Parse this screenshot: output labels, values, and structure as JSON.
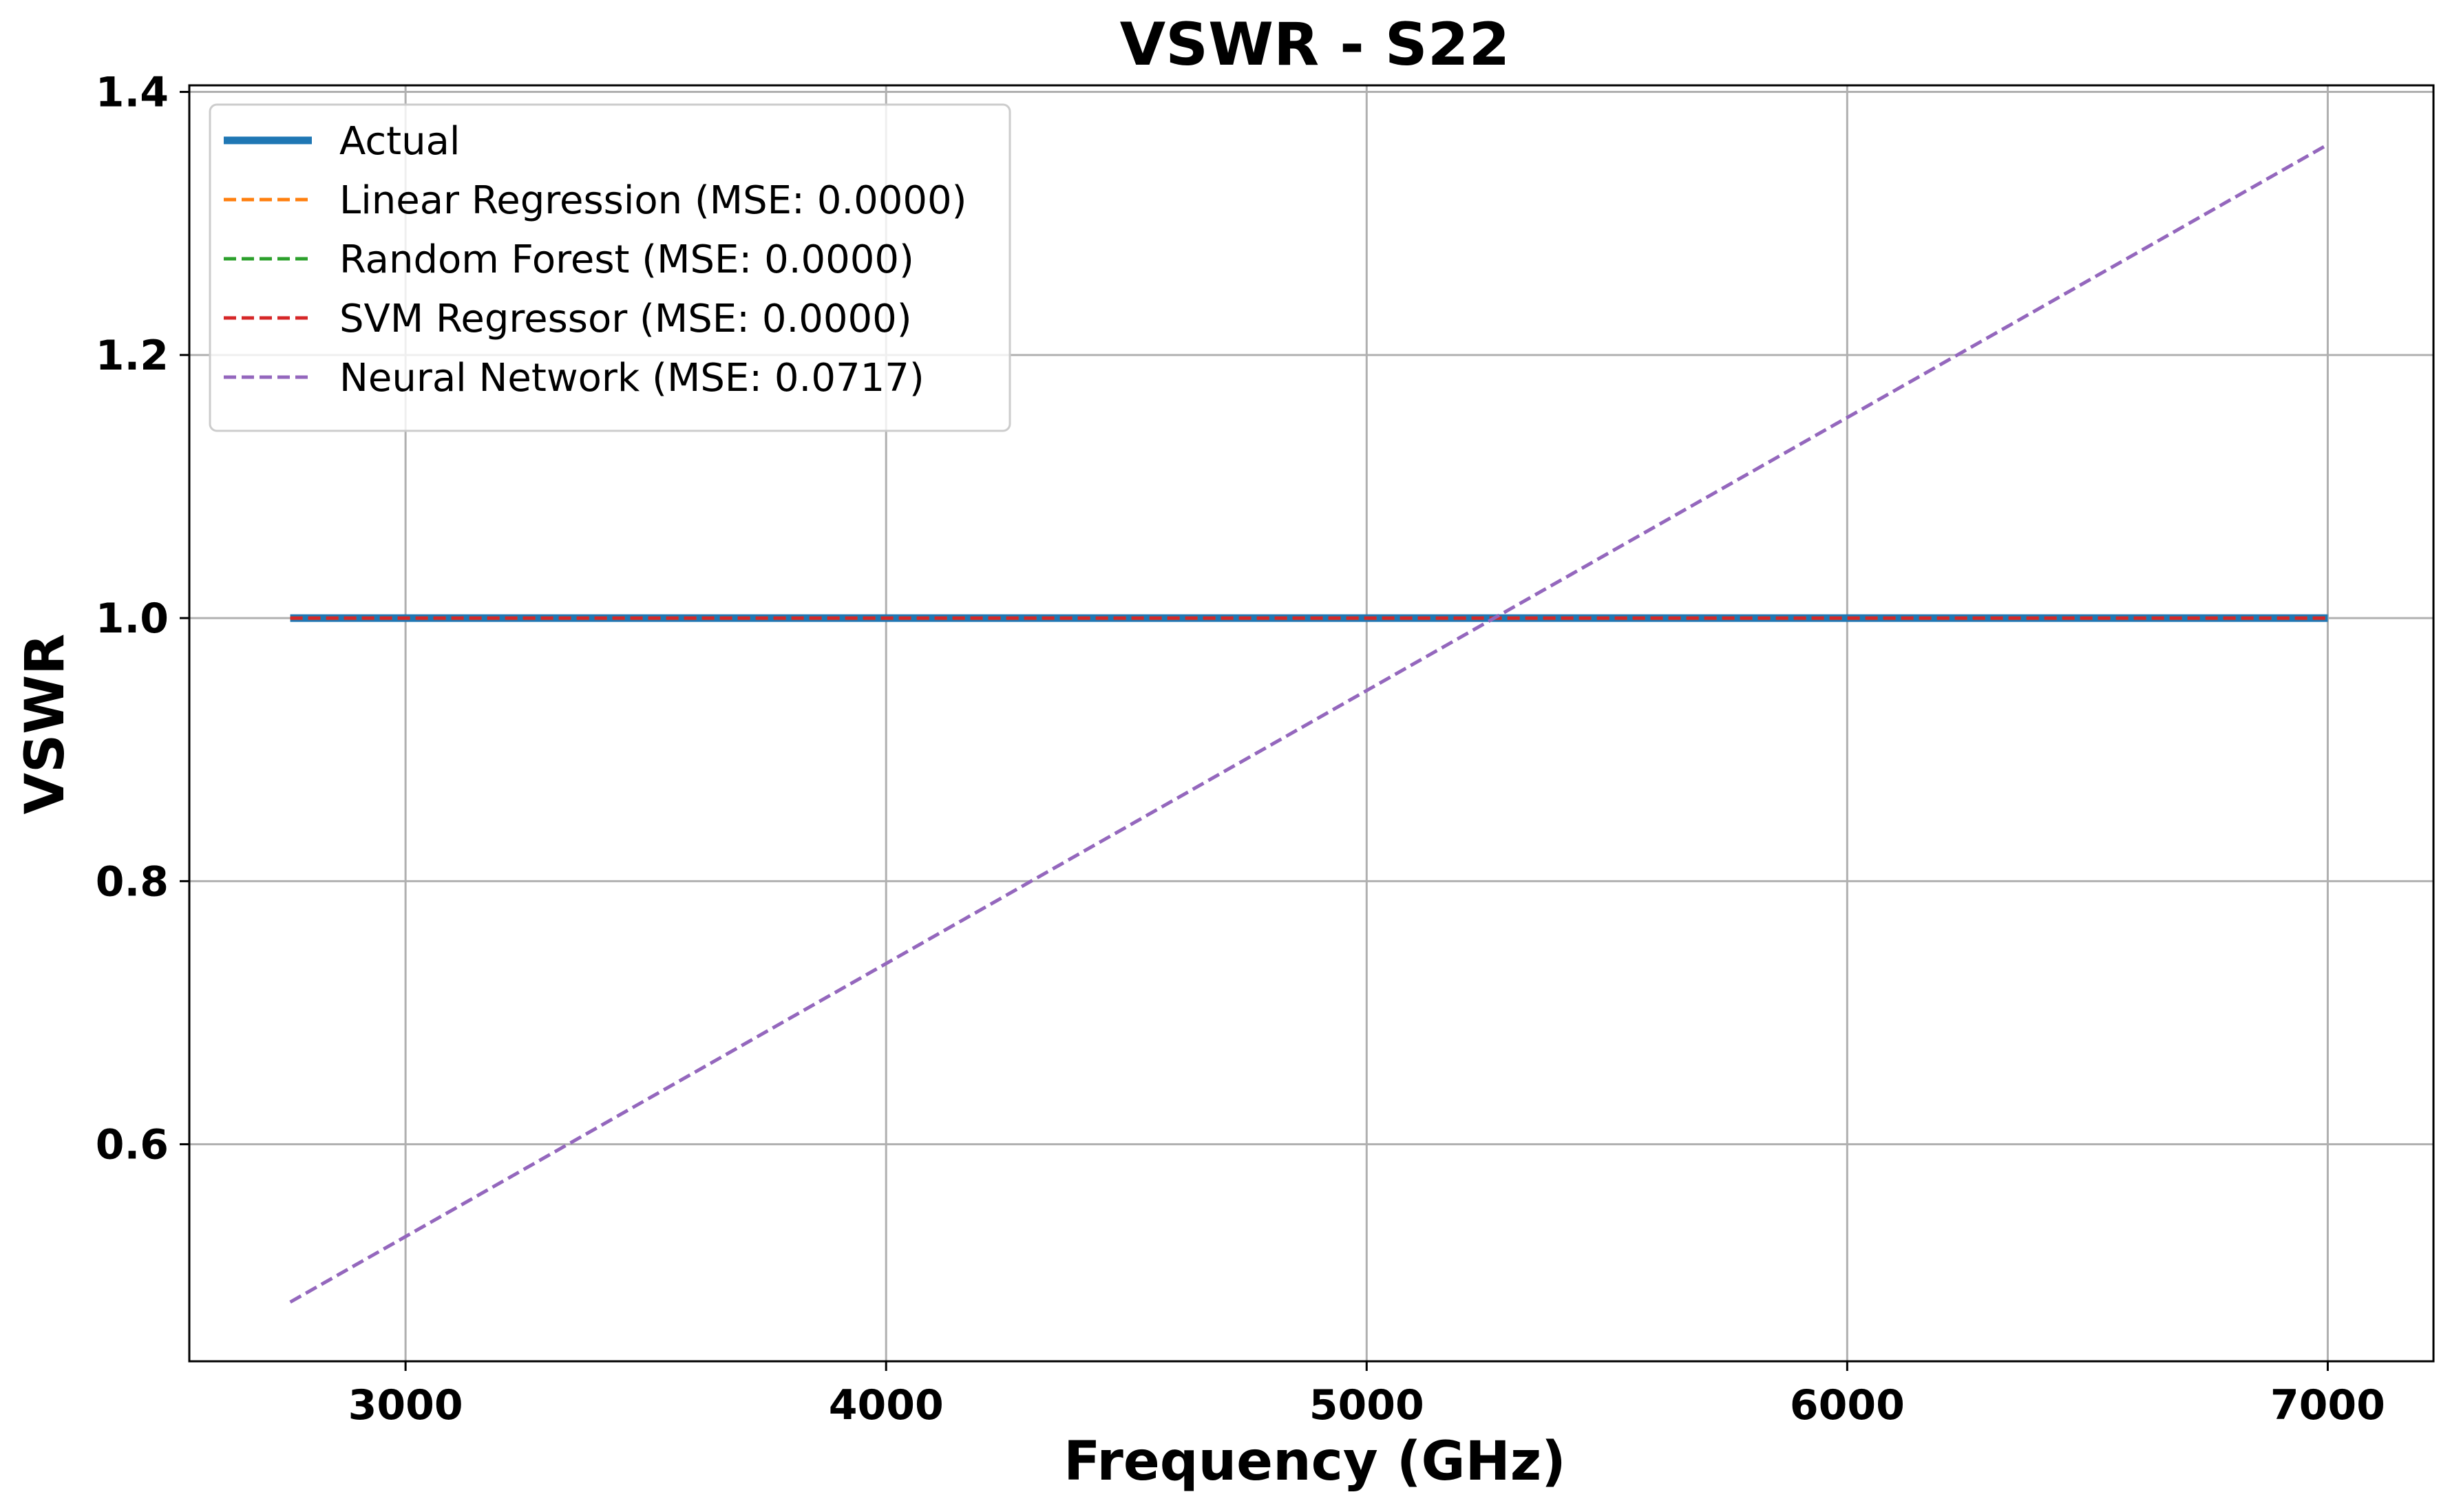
{
  "chart_data": {
    "type": "line",
    "title": "VSWR - S22",
    "xlabel": "Frequency (GHz)",
    "ylabel": "VSWR",
    "xlim": [
      2550,
      7220
    ],
    "ylim": [
      0.435,
      1.405
    ],
    "xticks": [
      3000,
      4000,
      5000,
      6000,
      7000
    ],
    "yticks": [
      0.6,
      0.8,
      1.0,
      1.2,
      1.4
    ],
    "xtick_labels": [
      "3000",
      "4000",
      "5000",
      "6000",
      "7000"
    ],
    "ytick_labels": [
      "0.6",
      "0.8",
      "1.0",
      "1.2",
      "1.4"
    ],
    "grid": true,
    "legend_position": "top-left",
    "series": [
      {
        "name": "Actual",
        "color": "#1f77b4",
        "style": "solid",
        "x": [
          2760,
          7000
        ],
        "y": [
          1.0,
          1.0
        ]
      },
      {
        "name": "Linear Regression (MSE: 0.0000)",
        "color": "#ff7f0e",
        "style": "dashed",
        "x": [
          2760,
          7000
        ],
        "y": [
          1.0,
          1.0
        ]
      },
      {
        "name": "Random Forest (MSE: 0.0000)",
        "color": "#2ca02c",
        "style": "dashed",
        "x": [
          2760,
          7000
        ],
        "y": [
          1.0,
          1.0
        ]
      },
      {
        "name": "SVM Regressor (MSE: 0.0000)",
        "color": "#d62728",
        "style": "dashed",
        "x": [
          2760,
          7000
        ],
        "y": [
          1.0,
          1.0
        ]
      },
      {
        "name": "Neural Network (MSE: 0.0717)",
        "color": "#9467bd",
        "style": "dashed",
        "x": [
          2760,
          7000
        ],
        "y": [
          0.48,
          1.36
        ]
      }
    ]
  }
}
